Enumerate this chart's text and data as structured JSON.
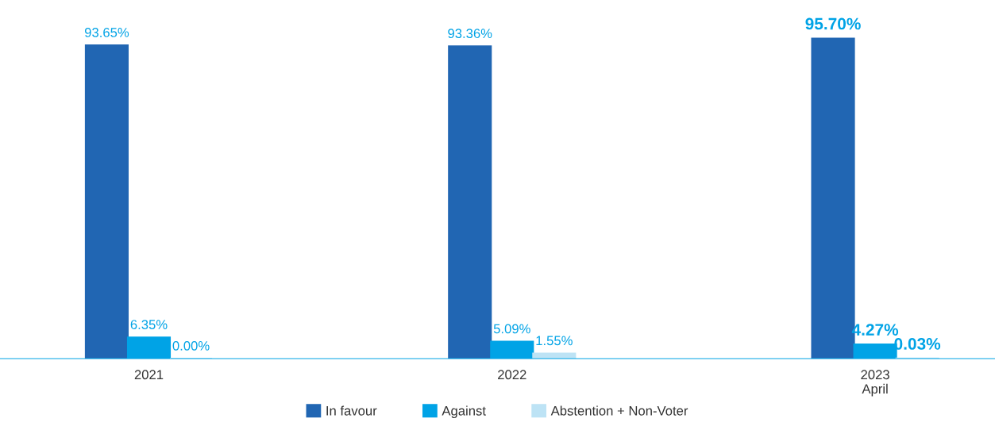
{
  "chart_data": {
    "type": "bar",
    "categories": [
      "2021",
      "2022",
      "2023\nApril"
    ],
    "series": [
      {
        "name": "In favour",
        "color": "#2166b3",
        "values": [
          93.65,
          93.36,
          95.7
        ],
        "value_labels": [
          "93.65%",
          "93.36%",
          "95.70%"
        ]
      },
      {
        "name": "Against",
        "color": "#00a3e6",
        "values": [
          6.35,
          5.09,
          4.27
        ],
        "value_labels": [
          "6.35%",
          "5.09%",
          "4.27%"
        ]
      },
      {
        "name": "Abstention + Non-Voter",
        "color": "#bde3f5",
        "values": [
          0.0,
          1.55,
          0.03
        ],
        "value_labels": [
          "0.00%",
          "1.55%",
          "0.03%"
        ]
      }
    ],
    "grid": false,
    "legend": "bottom"
  }
}
